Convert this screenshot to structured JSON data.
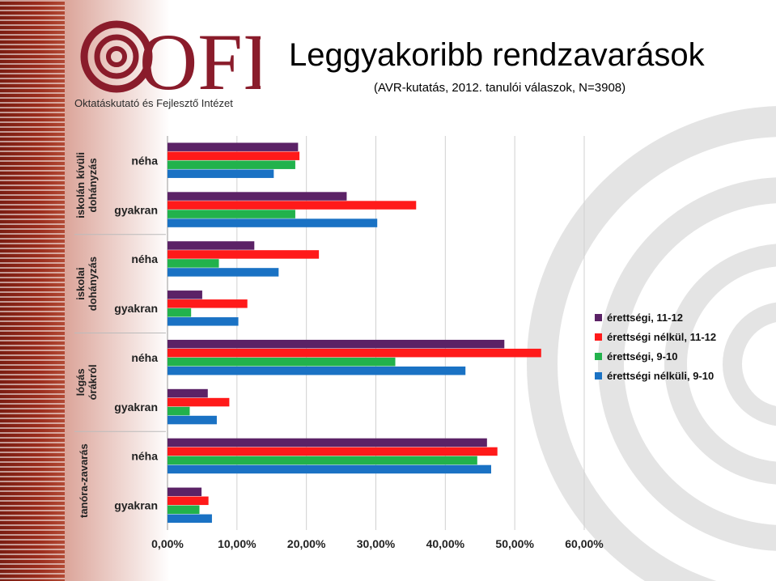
{
  "header": {
    "title": "Leggyakoribb rendzavarások",
    "subtitle": "(AVR-kutatás, 2012.  tanulói válaszok, N=3908)",
    "logo_text": "OFI",
    "logo_caption": "Oktatáskutató és Fejlesztő Intézet"
  },
  "colors": {
    "series": [
      "#5b2266",
      "#ff1a1a",
      "#22b24c",
      "#1a72c4"
    ],
    "brand": "#8a1c2b"
  },
  "chart_data": {
    "type": "bar",
    "orientation": "horizontal",
    "xlim": [
      0,
      60
    ],
    "x_ticks": [
      "0,00%",
      "10,00%",
      "20,00%",
      "30,00%",
      "40,00%",
      "50,00%",
      "60,00%"
    ],
    "grid": true,
    "legend_position": "right",
    "groups": [
      {
        "label": "iskolán kívüli dohányzás",
        "categories": [
          "néha",
          "gyakran"
        ]
      },
      {
        "label": "iskolai dohányzás",
        "categories": [
          "néha",
          "gyakran"
        ]
      },
      {
        "label": "lógás órákról",
        "categories": [
          "néha",
          "gyakran"
        ]
      },
      {
        "label": "tanóra-zavarás",
        "categories": [
          "néha",
          "gyakran"
        ]
      }
    ],
    "series": [
      {
        "name": "érettségi, 11-12",
        "values": [
          18.8,
          25.8,
          12.5,
          5.0,
          48.5,
          5.8,
          46.0,
          4.9
        ]
      },
      {
        "name": "érettségi nélkül, 11-12",
        "values": [
          19.0,
          35.8,
          21.8,
          11.5,
          53.8,
          8.9,
          47.5,
          5.9
        ]
      },
      {
        "name": "érettségi, 9-10",
        "values": [
          18.4,
          18.4,
          7.4,
          3.4,
          32.8,
          3.2,
          44.6,
          4.6
        ]
      },
      {
        "name": "érettségi nélküli, 9-10",
        "values": [
          15.3,
          30.2,
          16.0,
          10.2,
          42.9,
          7.1,
          46.6,
          6.4
        ]
      }
    ]
  }
}
